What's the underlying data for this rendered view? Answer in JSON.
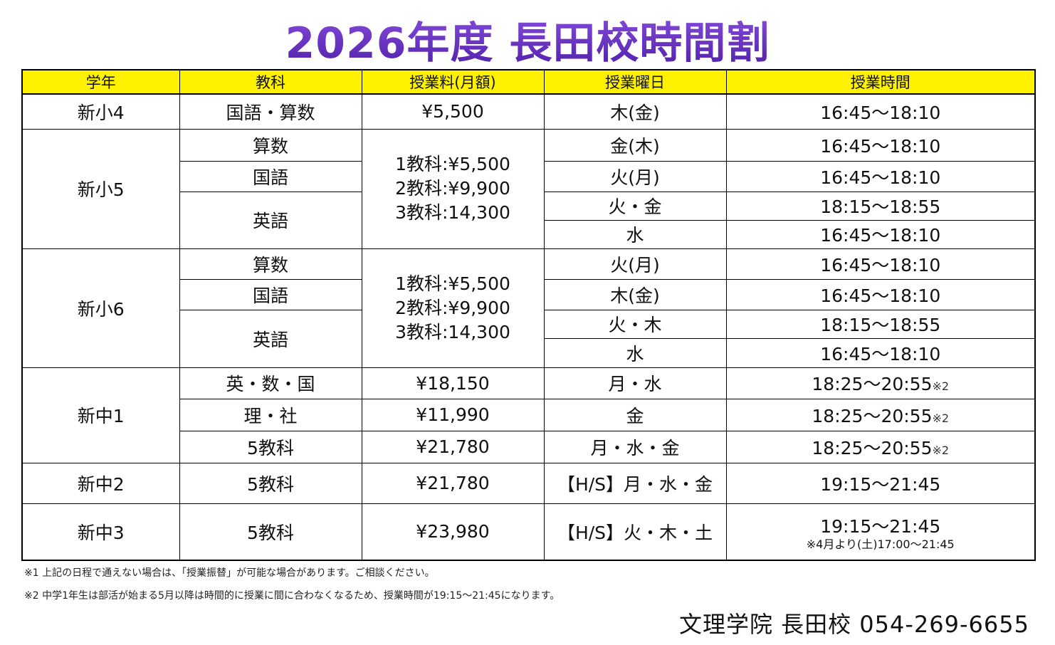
{
  "title": "2026年度 長田校時間割",
  "headers": [
    "学年",
    "教科",
    "授業料(月額)",
    "授業曜日",
    "授業時間"
  ],
  "rows": {
    "g4": {
      "grade": "新小4",
      "subject": "国語・算数",
      "fee": "¥5,500",
      "day": "木(金)",
      "time": "16:45〜18:10"
    },
    "g5": {
      "grade": "新小5",
      "subjects": [
        "算数",
        "国語",
        "英語"
      ],
      "fee": [
        "1教科:¥5,500",
        "2教科:¥9,900",
        "3教科:14,300"
      ],
      "days": [
        "金(木)",
        "火(月)",
        "火・金",
        "水"
      ],
      "times": [
        "16:45〜18:10",
        "16:45〜18:10",
        "18:15〜18:55",
        "16:45〜18:10"
      ]
    },
    "g6": {
      "grade": "新小6",
      "subjects": [
        "算数",
        "国語",
        "英語"
      ],
      "fee": [
        "1教科:¥5,500",
        "2教科:¥9,900",
        "3教科:14,300"
      ],
      "days": [
        "火(月)",
        "木(金)",
        "火・木",
        "水"
      ],
      "times": [
        "16:45〜18:10",
        "16:45〜18:10",
        "18:15〜18:55",
        "16:45〜18:10"
      ]
    },
    "j1": {
      "grade": "新中1",
      "subjects": [
        "英・数・国",
        "理・社",
        "5教科"
      ],
      "fees": [
        "¥18,150",
        "¥11,990",
        "¥21,780"
      ],
      "days": [
        "月・水",
        "金",
        "月・水・金"
      ],
      "times": [
        "18:25〜20:55",
        "18:25〜20:55",
        "18:25〜20:55"
      ],
      "mark": "※2"
    },
    "j2": {
      "grade": "新中2",
      "subject": "5教科",
      "fee": "¥21,780",
      "day": "【H/S】月・水・金",
      "time": "19:15〜21:45"
    },
    "j3": {
      "grade": "新中3",
      "subject": "5教科",
      "fee": "¥23,980",
      "day": "【H/S】火・木・土",
      "time": "19:15〜21:45",
      "note": "※4月より(土)17:00〜21:45"
    }
  },
  "notes": [
    "※1 上記の日程で通えない場合は、「授業振替」が可能な場合があります。ご相談ください。",
    "※2 中学1年生は部活が始まる5月以降は時間的に授業に間に合わなくなるため、授業時間が19:15〜21:45になります。"
  ],
  "footer": "文理学院 長田校 054-269-6655",
  "colors": {
    "title": "#6a32c4",
    "header_bg": "#fff200"
  }
}
